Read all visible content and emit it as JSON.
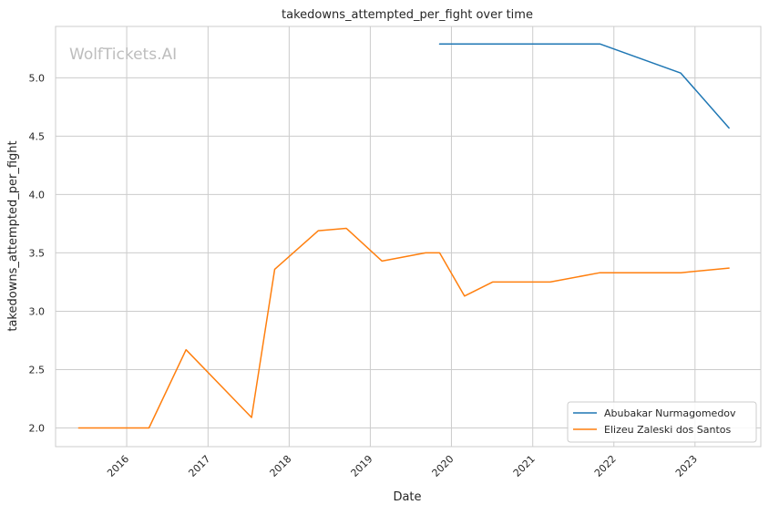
{
  "chart_data": {
    "type": "line",
    "title": "takedowns_attempted_per_fight over time",
    "xlabel": "Date",
    "ylabel": "takedowns_attempted_per_fight",
    "watermark": "WolfTickets.AI",
    "x_axis": {
      "type": "date",
      "range": [
        "2015-02-15",
        "2023-10-24"
      ],
      "ticks": [
        "2016",
        "2017",
        "2018",
        "2019",
        "2020",
        "2021",
        "2022",
        "2023"
      ],
      "tick_rotation_deg": 45
    },
    "y_axis": {
      "range": [
        1.84,
        5.44
      ],
      "ticks": [
        2.0,
        2.5,
        3.0,
        3.5,
        4.0,
        4.5,
        5.0
      ],
      "tick_labels": [
        "2.0",
        "2.5",
        "3.0",
        "3.5",
        "4.0",
        "4.5",
        "5.0"
      ]
    },
    "grid": true,
    "legend_position": "lower-right",
    "series": [
      {
        "name": "Abubakar Nurmagomedov",
        "color": "#1f77b4",
        "points": [
          {
            "x": "2019-11-09",
            "y": 5.29
          },
          {
            "x": "2021-10-30",
            "y": 5.29
          },
          {
            "x": "2022-10-29",
            "y": 5.04
          },
          {
            "x": "2023-06-03",
            "y": 4.57
          }
        ]
      },
      {
        "name": "Elizeu Zaleski dos Santos",
        "color": "#ff7f0e",
        "points": [
          {
            "x": "2015-05-30",
            "y": 2.0
          },
          {
            "x": "2016-04-10",
            "y": 2.0
          },
          {
            "x": "2016-09-24",
            "y": 2.67
          },
          {
            "x": "2017-07-16",
            "y": 2.09
          },
          {
            "x": "2017-10-28",
            "y": 3.36
          },
          {
            "x": "2018-05-12",
            "y": 3.69
          },
          {
            "x": "2018-09-15",
            "y": 3.71
          },
          {
            "x": "2019-02-23",
            "y": 3.43
          },
          {
            "x": "2019-09-07",
            "y": 3.5
          },
          {
            "x": "2019-11-09",
            "y": 3.5
          },
          {
            "x": "2020-02-29",
            "y": 3.13
          },
          {
            "x": "2020-07-04",
            "y": 3.25
          },
          {
            "x": "2021-03-20",
            "y": 3.25
          },
          {
            "x": "2021-10-30",
            "y": 3.33
          },
          {
            "x": "2022-10-29",
            "y": 3.33
          },
          {
            "x": "2023-06-03",
            "y": 3.37
          }
        ]
      }
    ]
  }
}
